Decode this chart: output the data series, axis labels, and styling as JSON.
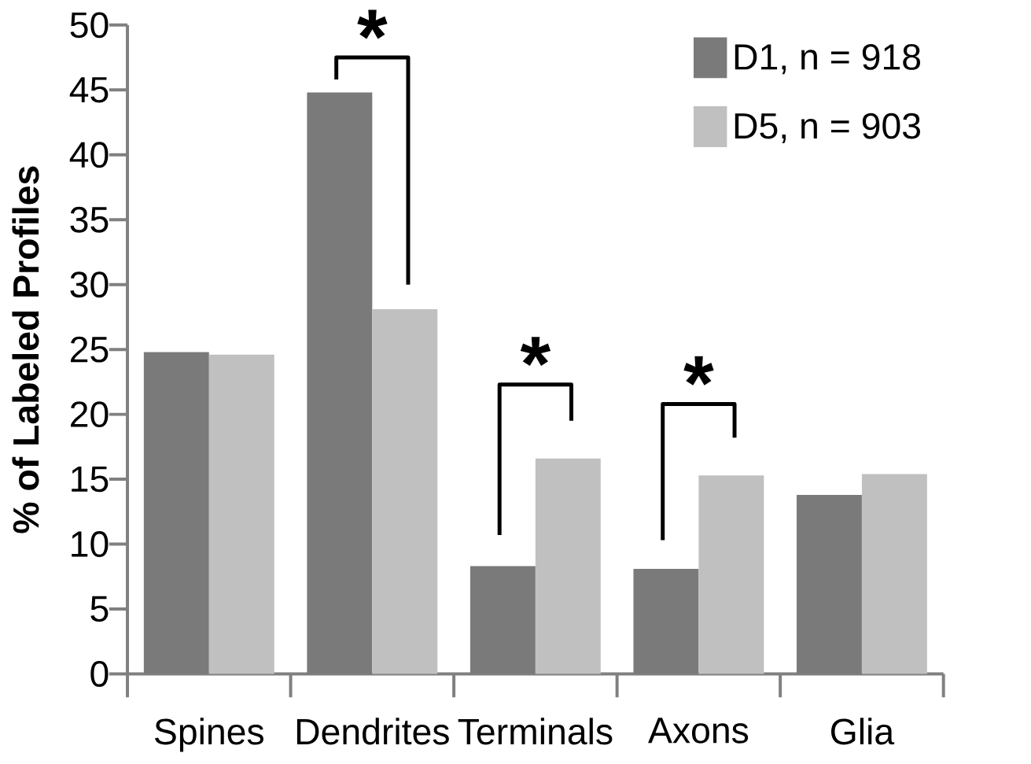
{
  "chart_data": {
    "type": "bar",
    "ylabel": "% of Labeled Profiles",
    "categories": [
      "Spines",
      "Dendrites",
      "Terminals",
      "Axons",
      "Glia"
    ],
    "series": [
      {
        "name": "D1, n = 918",
        "color": "#7a7a7a",
        "values": [
          24.8,
          44.8,
          8.3,
          8.1,
          13.8
        ]
      },
      {
        "name": "D5, n = 903",
        "color": "#c0c0c0",
        "values": [
          24.6,
          28.1,
          16.6,
          15.3,
          15.4
        ]
      }
    ],
    "ylim": [
      0,
      50
    ],
    "yticks": [
      0,
      5,
      10,
      15,
      20,
      25,
      30,
      35,
      40,
      45,
      50
    ],
    "legend": "top right",
    "grid": false,
    "annotations": [
      "*",
      "*",
      "*"
    ]
  }
}
